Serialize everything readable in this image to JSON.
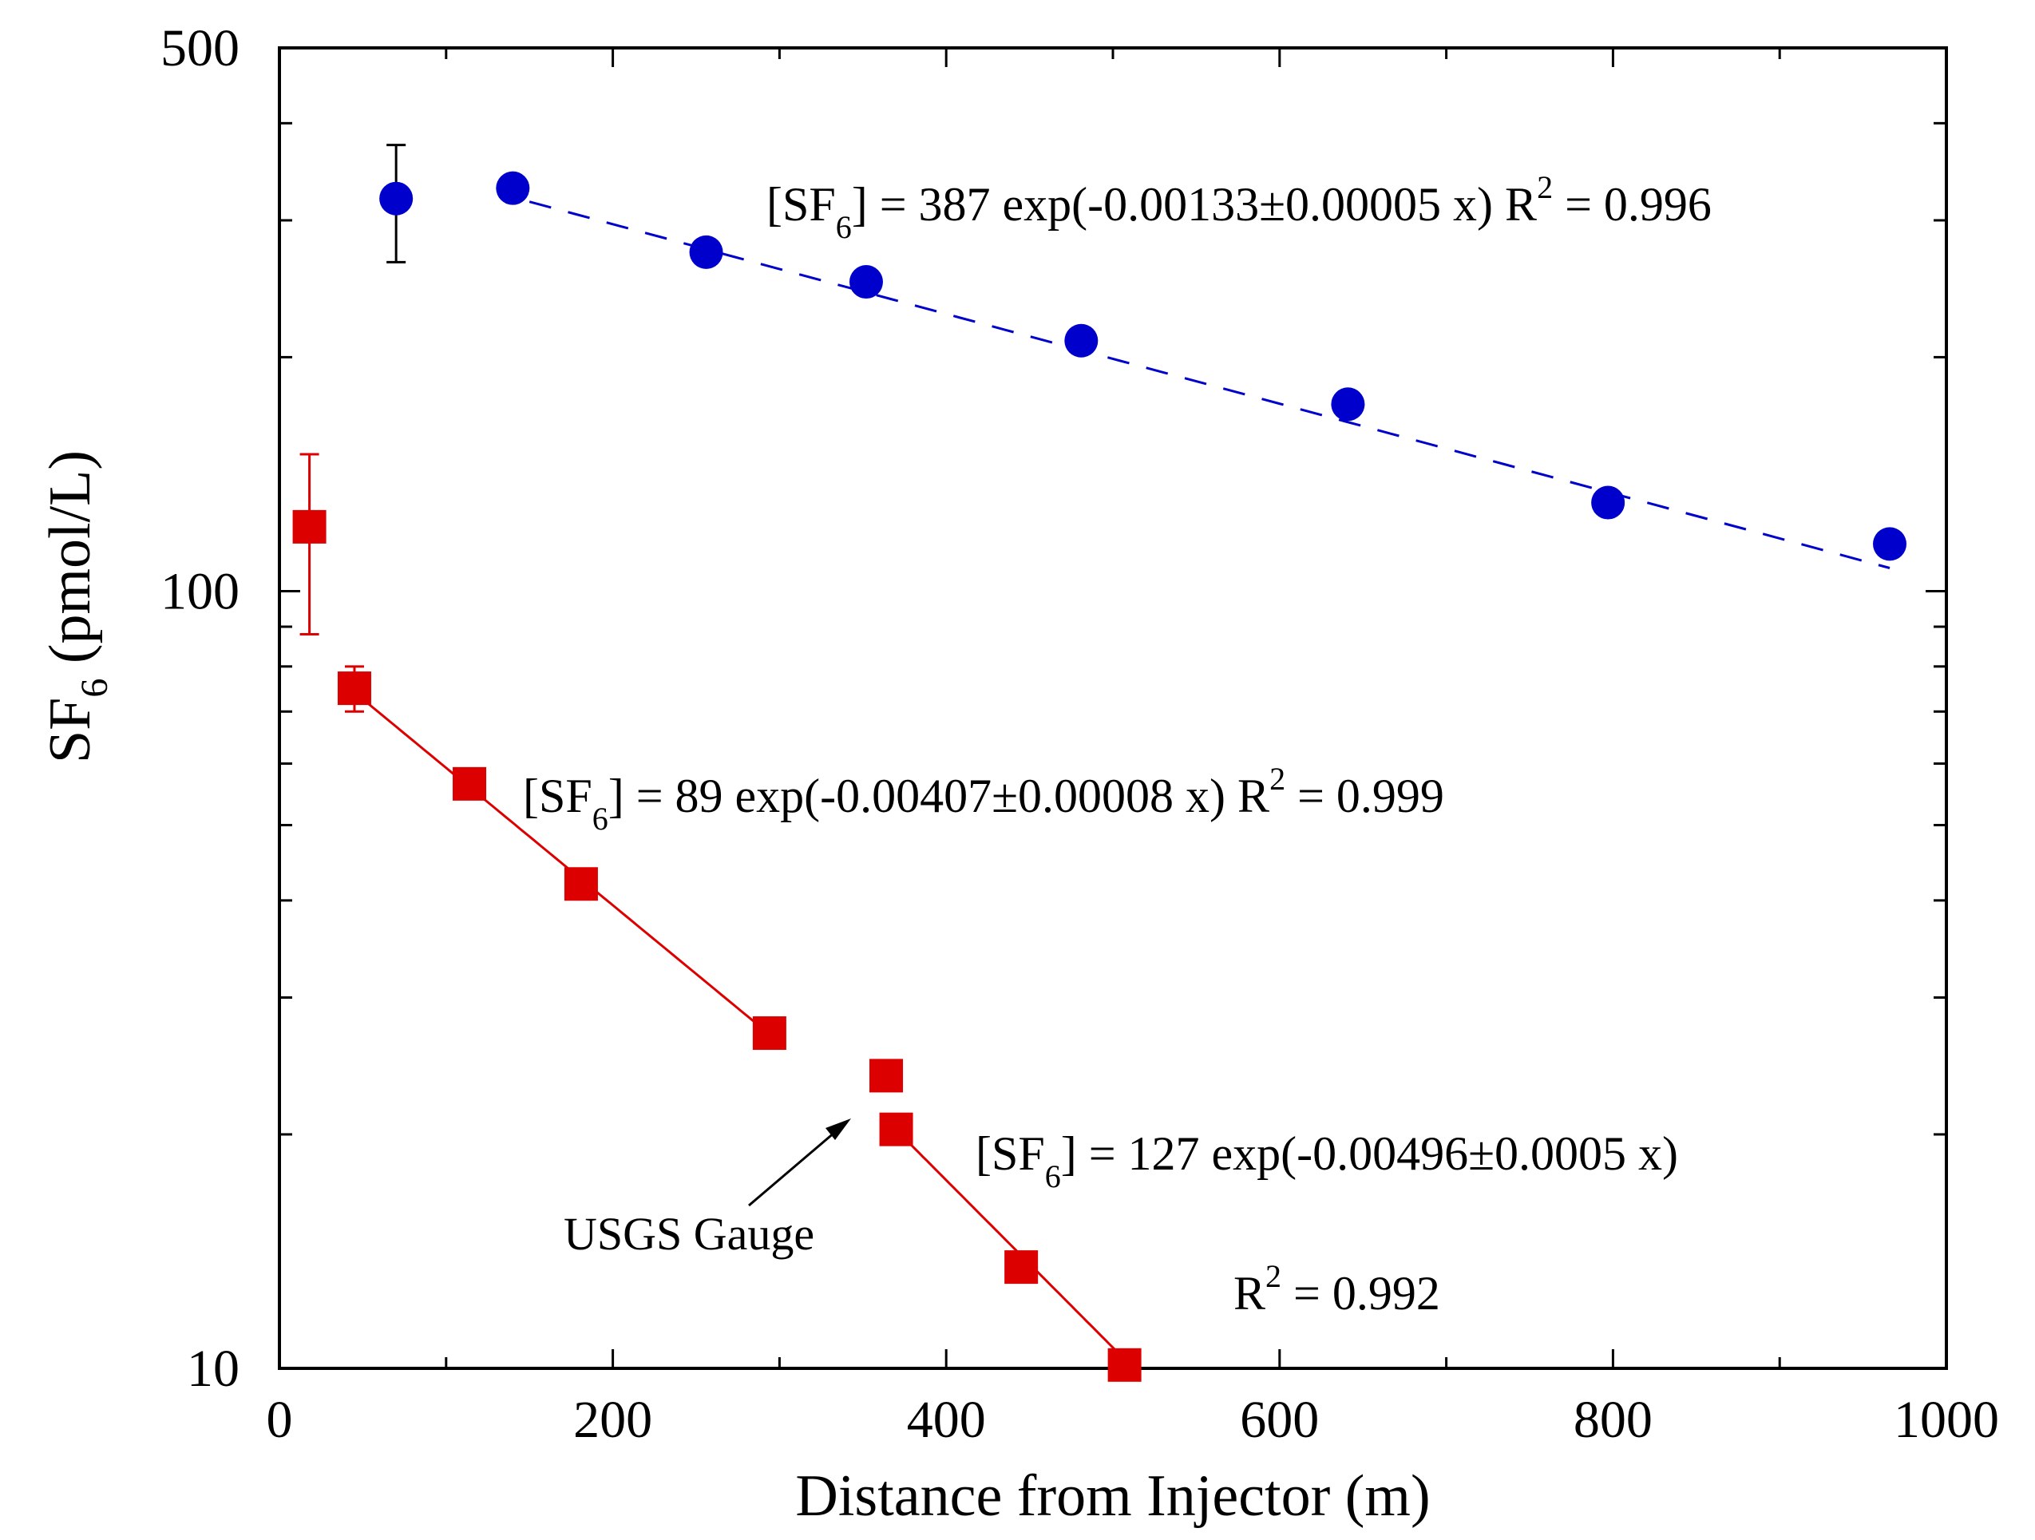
{
  "chart_data": {
    "type": "scatter",
    "xlabel": "Distance from Injector (m)",
    "ylabel": {
      "main": "SF",
      "sub": "6",
      "units": " (pmol/L)"
    },
    "xlim": [
      0,
      1000
    ],
    "ylim": [
      10,
      500
    ],
    "yscale": "log",
    "x_ticks": [
      0,
      200,
      400,
      600,
      800,
      1000
    ],
    "x_tick_labels": [
      "0",
      "200",
      "400",
      "600",
      "800",
      "1000"
    ],
    "y_ticks": [
      10,
      100,
      500
    ],
    "y_tick_labels": [
      "10",
      "100",
      "500"
    ],
    "series": [
      {
        "name": "blue",
        "color": "#0000cc",
        "marker": "circle",
        "points": [
          {
            "x": 70,
            "y": 320,
            "err_low": 265,
            "err_high": 375
          },
          {
            "x": 140,
            "y": 330
          },
          {
            "x": 256,
            "y": 273
          },
          {
            "x": 352,
            "y": 250
          },
          {
            "x": 481,
            "y": 210
          },
          {
            "x": 641,
            "y": 174
          },
          {
            "x": 797,
            "y": 130
          },
          {
            "x": 966,
            "y": 115
          }
        ],
        "fit": {
          "a": 387,
          "k": 0.00133,
          "x_range": [
            150,
            966
          ],
          "style": "dashed"
        }
      },
      {
        "name": "red",
        "color": "#dd0000",
        "marker": "square",
        "points": [
          {
            "x": 18,
            "y": 121,
            "err_low": 88,
            "err_high": 150
          },
          {
            "x": 45,
            "y": 75,
            "err_low": 70,
            "err_high": 80
          },
          {
            "x": 114,
            "y": 56.5
          },
          {
            "x": 181,
            "y": 42
          },
          {
            "x": 294,
            "y": 27
          },
          {
            "x": 364,
            "y": 23.8
          },
          {
            "x": 370,
            "y": 20.3
          },
          {
            "x": 445,
            "y": 13.5
          },
          {
            "x": 507,
            "y": 10.1
          }
        ],
        "fits": [
          {
            "a": 89,
            "k": 0.00407,
            "x_range": [
              45,
              294
            ],
            "style": "solid"
          },
          {
            "a": 127,
            "k": 0.00496,
            "x_range": [
              370,
              507
            ],
            "style": "solid"
          }
        ]
      }
    ],
    "annotations": {
      "blue_eq": {
        "pre": "[SF",
        "sub": "6",
        "post": "] = 387 exp(-0.00133±0.00005 x)  R",
        "sup": "2",
        "tail": " = 0.996"
      },
      "red_eq1": {
        "pre": "[SF",
        "sub": "6",
        "post": "] = 89 exp(-0.00407±0.00008 x)  R",
        "sup": "2",
        "tail": " = 0.999"
      },
      "red_eq2": {
        "pre": "[SF",
        "sub": "6",
        "post": "] = 127 exp(-0.00496±0.0005 x)"
      },
      "red_r2": {
        "pre": "R",
        "sup": "2",
        "tail": " = 0.992"
      },
      "gauge_label": "USGS Gauge"
    }
  }
}
